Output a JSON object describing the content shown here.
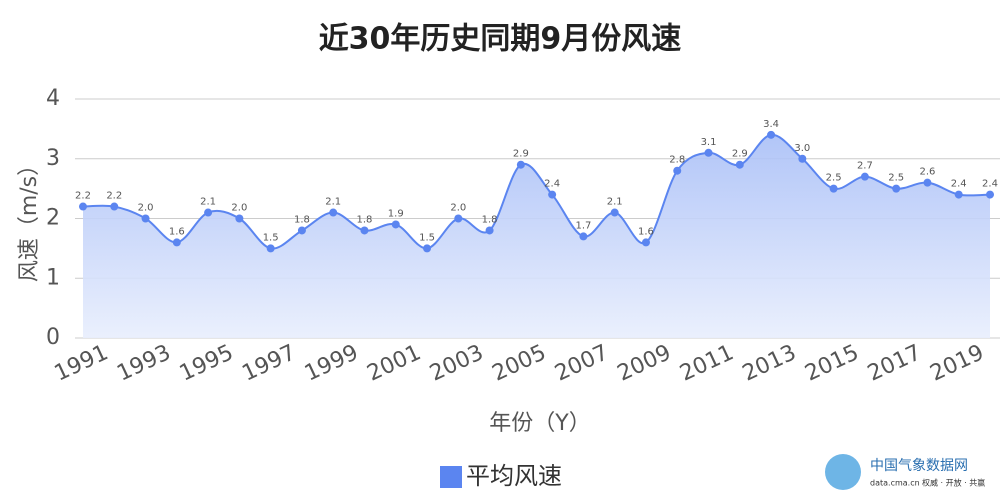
{
  "chart_data": {
    "type": "line",
    "title": "近30年历史同期9月份风速",
    "x_label": "年份（Y）",
    "y_label": "风速（m/s）",
    "categories": [
      "1991",
      null,
      "1993",
      null,
      "1995",
      null,
      "1997",
      null,
      "1999",
      null,
      "2001",
      null,
      "2003",
      null,
      "2005",
      null,
      "2007",
      null,
      "2009",
      null,
      "2011",
      null,
      "2013",
      null,
      "2015",
      null,
      "2017",
      null,
      "2019",
      null
    ],
    "series": [
      {
        "name": "平均风速",
        "color": "#5b85f0",
        "values": [
          2.2,
          2.2,
          2.0,
          1.6,
          2.1,
          2.0,
          1.5,
          1.8,
          2.1,
          1.8,
          1.9,
          1.5,
          2.0,
          1.8,
          2.9,
          2.4,
          1.7,
          2.1,
          1.6,
          2.8,
          3.1,
          2.9,
          3.4,
          3.0,
          2.5,
          2.7,
          2.5,
          2.6,
          2.4,
          2.4
        ],
        "value_labels": [
          "2.2",
          "2.2",
          "2.0",
          "1.6",
          "2.1",
          "2.0",
          "1.5",
          "1.8",
          "2.1",
          "1.8",
          "1.9",
          "1.5",
          "2.0",
          "1.8",
          "2.9",
          "2.4",
          "1.7",
          "2.1",
          "1.6",
          "2.8",
          "3.1",
          "2.9",
          "3.4",
          "3.0",
          "2.5",
          "2.7",
          "2.5",
          "2.6",
          "2.4",
          "2.4"
        ]
      }
    ],
    "ylim": [
      0,
      4
    ],
    "yticks": [
      0,
      1,
      2,
      3,
      4
    ],
    "grid": true,
    "smooth": true,
    "area": true,
    "legend": "bottom"
  },
  "logo": {
    "name": "中国气象数据网",
    "url": "data.cma.cn",
    "slogan": "权威 · 开放 · 共赢"
  }
}
